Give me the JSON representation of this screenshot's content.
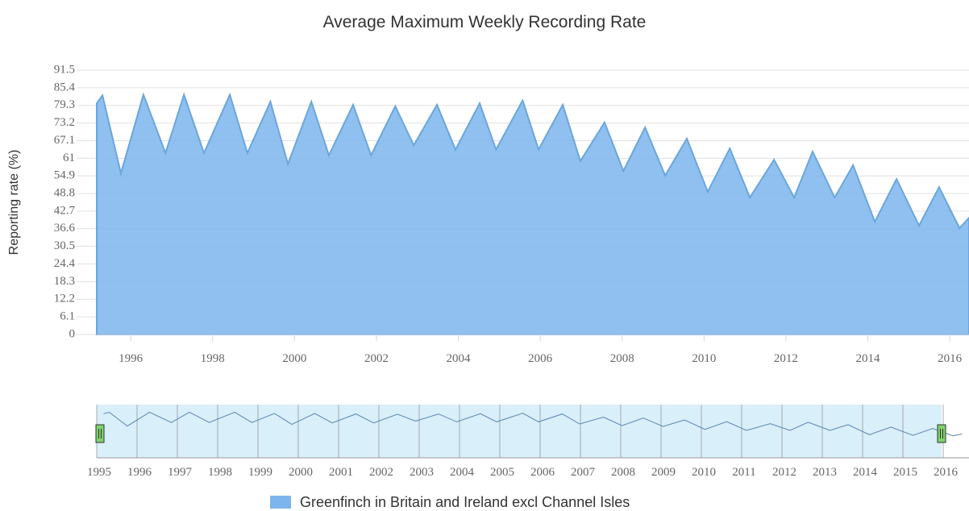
{
  "chart_data": {
    "type": "area",
    "title": "Average Maximum Weekly Recording Rate",
    "y_label": "Reporting rate (%)",
    "x": [
      1995.17,
      1995.31,
      1995.76,
      1996.31,
      1996.85,
      1997.3,
      1997.79,
      1998.42,
      1998.85,
      1999.41,
      1999.84,
      2000.41,
      2000.84,
      2001.43,
      2001.87,
      2002.46,
      2002.91,
      2003.48,
      2003.93,
      2004.52,
      2004.92,
      2005.57,
      2005.96,
      2006.55,
      2006.98,
      2007.57,
      2008.03,
      2008.56,
      2009.05,
      2009.58,
      2010.09,
      2010.63,
      2011.12,
      2011.71,
      2012.2,
      2012.65,
      2013.19,
      2013.64,
      2014.17,
      2014.7,
      2015.25,
      2015.74,
      2016.24,
      2016.47
    ],
    "series": [
      {
        "name": "Greenfinch in Britain and Ireland excl Channel Isles",
        "color": "#7cb5ec",
        "values": [
          80,
          82.8,
          55.8,
          83,
          62.8,
          83,
          62.8,
          83,
          62.8,
          80.6,
          59,
          80.6,
          62,
          79.5,
          62,
          79,
          65.5,
          79.5,
          64,
          80,
          64,
          81,
          64,
          79.5,
          60,
          73.4,
          56.6,
          71.7,
          55,
          67.8,
          49.4,
          64.4,
          47.4,
          60.5,
          47.4,
          63.3,
          47.4,
          58.6,
          39,
          53.8,
          37.7,
          51,
          36.8,
          40.4
        ]
      }
    ],
    "xlim": [
      1995.17,
      2016.47
    ],
    "xticks": [
      1996,
      1998,
      2000,
      2002,
      2004,
      2006,
      2008,
      2010,
      2012,
      2014,
      2016
    ],
    "ylim": [
      0,
      91.5
    ],
    "yticks": [
      0,
      6.1,
      12.2,
      18.3,
      24.4,
      30.5,
      36.6,
      42.7,
      48.8,
      54.9,
      61,
      67.1,
      73.2,
      79.3,
      85.4,
      91.5
    ],
    "grid": true,
    "navigator": {
      "xlim": [
        1995,
        2016.64
      ],
      "xticks": [
        1995,
        1996,
        1997,
        1998,
        1999,
        2000,
        2001,
        2002,
        2003,
        2004,
        2005,
        2006,
        2007,
        2008,
        2009,
        2010,
        2011,
        2012,
        2013,
        2014,
        2015,
        2016
      ]
    }
  }
}
